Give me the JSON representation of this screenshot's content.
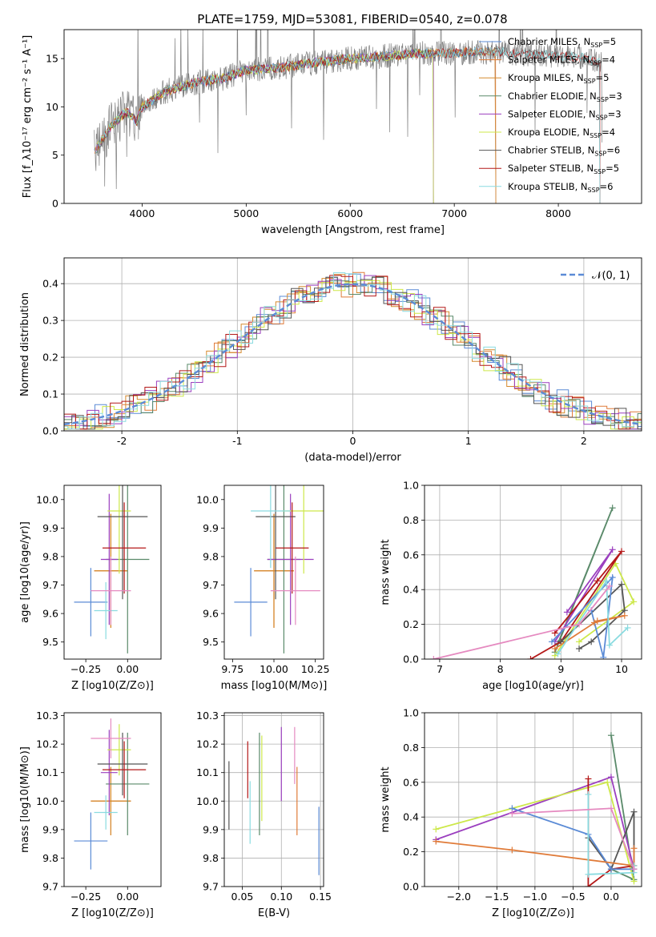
{
  "figure_title": "PLATE=1759, MJD=53081, FIBERID=0540, z=0.078",
  "colors": {
    "Chabrier MILES": "#5b8bd6",
    "Salpeter MILES": "#e07b39",
    "Kroupa MILES": "#d68a2e",
    "Chabrier ELODIE": "#5a8a6a",
    "Salpeter ELODIE": "#9b3fbf",
    "Kroupa ELODIE": "#cde84a",
    "Chabrier STELIB": "#555555",
    "Salpeter STELIB": "#b41818",
    "Kroupa STELIB": "#8adbe0",
    "pink": "#e58ac0",
    "normal_curve": "#5b8bd6"
  },
  "chart_data": [
    {
      "id": "spectrum",
      "type": "line",
      "xlabel": "wavelength [Angstrom, rest frame]",
      "ylabel": "Flux [f_λ10⁻¹⁷ erg cm⁻² s⁻¹ A⁻¹]",
      "xlim": [
        3250,
        8800
      ],
      "ylim": [
        0,
        18
      ],
      "xticks": [
        4000,
        5000,
        6000,
        7000,
        8000
      ],
      "yticks": [
        0,
        5,
        10,
        15
      ],
      "grid": false,
      "legend_position": "right",
      "data_color": "#808080",
      "continuum": [
        [
          3550,
          5.5
        ],
        [
          3700,
          8
        ],
        [
          3850,
          9.5
        ],
        [
          3950,
          8.5
        ],
        [
          4000,
          10
        ],
        [
          4200,
          11.5
        ],
        [
          4500,
          12.5
        ],
        [
          4800,
          13
        ],
        [
          5000,
          13.8
        ],
        [
          5300,
          14
        ],
        [
          5600,
          14.5
        ],
        [
          6000,
          15
        ],
        [
          6300,
          15.2
        ],
        [
          6600,
          15.5
        ],
        [
          7000,
          15.6
        ],
        [
          7400,
          15.7
        ],
        [
          7800,
          15.4
        ],
        [
          8200,
          15.2
        ],
        [
          8400,
          14.5
        ]
      ],
      "series": [
        {
          "name": "Chabrier MILES, N_SSP=5",
          "color_key": "Chabrier MILES",
          "x_end": 7400
        },
        {
          "name": "Salpeter MILES, N_SSP=4",
          "color_key": "Salpeter MILES",
          "x_end": 7400
        },
        {
          "name": "Kroupa MILES, N_SSP=5",
          "color_key": "Kroupa MILES",
          "x_end": 7400
        },
        {
          "name": "Chabrier ELODIE, N_SSP=3",
          "color_key": "Chabrier ELODIE",
          "x_end": 6800
        },
        {
          "name": "Salpeter ELODIE, N_SSP=3",
          "color_key": "Salpeter ELODIE",
          "x_end": 6800
        },
        {
          "name": "Kroupa ELODIE, N_SSP=4",
          "color_key": "Kroupa ELODIE",
          "x_end": 6800
        },
        {
          "name": "Chabrier STELIB, N_SSP=6",
          "color_key": "Chabrier STELIB",
          "x_end": 8400
        },
        {
          "name": "Salpeter STELIB, N_SSP=5",
          "color_key": "Salpeter STELIB",
          "x_end": 8400
        },
        {
          "name": "Kroupa STELIB, N_SSP=6",
          "color_key": "Kroupa STELIB",
          "x_end": 8400
        }
      ]
    },
    {
      "id": "residuals",
      "type": "line",
      "xlabel": "(data-model)/error",
      "ylabel": "Normed distribution",
      "xlim": [
        -2.5,
        2.5
      ],
      "ylim": [
        0,
        0.47
      ],
      "xticks": [
        -2,
        -1,
        0,
        1,
        2
      ],
      "yticks": [
        0.0,
        0.1,
        0.2,
        0.3,
        0.4
      ],
      "grid": true,
      "legend_position": "top-right",
      "curve_label": "𝒩(0, 1)",
      "bin_width": 0.1
    },
    {
      "id": "age_vs_Z",
      "type": "scatter",
      "xlabel": "Z [log10(Z/Z⊙)]",
      "ylabel": "age  [log10(age/yr)]",
      "xlim": [
        -0.38,
        0.2
      ],
      "ylim": [
        9.44,
        10.05
      ],
      "xticks": [
        -0.25,
        0.0
      ],
      "xticklabels": [
        "−0.25",
        "0.00"
      ],
      "yticks": [
        9.5,
        9.6,
        9.7,
        9.8,
        9.9,
        10.0
      ],
      "grid": false,
      "points": [
        {
          "x": -0.22,
          "y": 9.64,
          "xerr": 0.1,
          "yerr": 0.12,
          "color_key": "Chabrier MILES"
        },
        {
          "x": -0.1,
          "y": 9.75,
          "xerr": 0.1,
          "yerr": 0.2,
          "color_key": "Salpeter MILES"
        },
        {
          "x": -0.1,
          "y": 9.75,
          "xerr": 0.1,
          "yerr": 0.2,
          "color_key": "Kroupa MILES"
        },
        {
          "x": 0.0,
          "y": 9.79,
          "xerr": 0.13,
          "yerr": 0.33,
          "color_key": "Chabrier ELODIE"
        },
        {
          "x": -0.11,
          "y": 9.79,
          "xerr": 0.05,
          "yerr": 0.23,
          "color_key": "Salpeter ELODIE"
        },
        {
          "x": -0.05,
          "y": 9.96,
          "xerr": 0.07,
          "yerr": 0.22,
          "color_key": "Kroupa ELODIE"
        },
        {
          "x": -0.03,
          "y": 9.94,
          "xerr": 0.15,
          "yerr": 0.29,
          "color_key": "Chabrier STELIB"
        },
        {
          "x": -0.02,
          "y": 9.83,
          "xerr": 0.13,
          "yerr": 0.16,
          "color_key": "Salpeter STELIB"
        },
        {
          "x": -0.13,
          "y": 9.61,
          "xerr": 0.07,
          "yerr": 0.1,
          "color_key": "Kroupa STELIB"
        },
        {
          "x": -0.1,
          "y": 9.68,
          "xerr": 0.12,
          "yerr": 0.12,
          "color_key": "pink"
        }
      ]
    },
    {
      "id": "age_vs_mass",
      "type": "scatter",
      "xlabel": "mass [log10(M/M⊙)]",
      "ylabel": "",
      "xlim": [
        9.7,
        10.3
      ],
      "ylim": [
        9.44,
        10.05
      ],
      "xticks": [
        9.75,
        10.0,
        10.25
      ],
      "xticklabels": [
        "9.75",
        "10.00",
        "10.25"
      ],
      "yticks": [
        9.5,
        9.6,
        9.7,
        9.8,
        9.9,
        10.0
      ],
      "grid": false,
      "points": [
        {
          "x": 9.86,
          "y": 9.64,
          "xerr": 0.1,
          "yerr": 0.12,
          "color_key": "Chabrier MILES"
        },
        {
          "x": 10.0,
          "y": 9.75,
          "xerr": 0.12,
          "yerr": 0.2,
          "color_key": "Salpeter MILES"
        },
        {
          "x": 10.0,
          "y": 9.75,
          "xerr": 0.12,
          "yerr": 0.2,
          "color_key": "Kroupa MILES"
        },
        {
          "x": 10.06,
          "y": 9.79,
          "xerr": 0.1,
          "yerr": 0.33,
          "color_key": "Chabrier ELODIE"
        },
        {
          "x": 10.1,
          "y": 9.79,
          "xerr": 0.14,
          "yerr": 0.23,
          "color_key": "Salpeter ELODIE"
        },
        {
          "x": 10.18,
          "y": 9.96,
          "xerr": 0.13,
          "yerr": 0.22,
          "color_key": "Kroupa ELODIE"
        },
        {
          "x": 10.01,
          "y": 9.94,
          "xerr": 0.12,
          "yerr": 0.29,
          "color_key": "Chabrier STELIB"
        },
        {
          "x": 10.11,
          "y": 9.83,
          "xerr": 0.1,
          "yerr": 0.16,
          "color_key": "Salpeter STELIB"
        },
        {
          "x": 9.98,
          "y": 9.96,
          "xerr": 0.12,
          "yerr": 0.2,
          "color_key": "Kroupa STELIB"
        },
        {
          "x": 10.13,
          "y": 9.68,
          "xerr": 0.15,
          "yerr": 0.12,
          "color_key": "pink"
        }
      ]
    },
    {
      "id": "massweight_vs_age",
      "type": "line",
      "xlabel": "age  [log10(age/yr)]",
      "ylabel": "mass weight",
      "xlim": [
        6.75,
        10.33
      ],
      "ylim": [
        0,
        1.0
      ],
      "xticks": [
        7,
        8,
        9,
        10
      ],
      "yticks": [
        0.0,
        0.2,
        0.4,
        0.6,
        0.8,
        1.0
      ],
      "grid": true,
      "series": [
        {
          "color_key": "Chabrier ELODIE",
          "points": [
            [
              8.9,
              0.04
            ],
            [
              9.85,
              0.87
            ],
            [
              8.95,
              0.09
            ]
          ]
        },
        {
          "color_key": "Salpeter ELODIE",
          "points": [
            [
              8.9,
              0.1
            ],
            [
              9.85,
              0.63
            ],
            [
              9.1,
              0.27
            ]
          ]
        },
        {
          "color_key": "Kroupa ELODIE",
          "points": [
            [
              8.9,
              0.02
            ],
            [
              9.9,
              0.55
            ],
            [
              10.2,
              0.33
            ],
            [
              9.3,
              0.1
            ]
          ]
        },
        {
          "color_key": "Salpeter STELIB",
          "points": [
            [
              8.5,
              0.0
            ],
            [
              9.0,
              0.1
            ],
            [
              10.0,
              0.62
            ],
            [
              9.6,
              0.45
            ],
            [
              8.9,
              0.15
            ]
          ]
        },
        {
          "color_key": "Chabrier STELIB",
          "points": [
            [
              9.0,
              0.1
            ],
            [
              10.0,
              0.43
            ],
            [
              10.05,
              0.28
            ],
            [
              9.5,
              0.1
            ],
            [
              9.3,
              0.06
            ]
          ]
        },
        {
          "color_key": "Chabrier MILES",
          "points": [
            [
              8.85,
              0.1
            ],
            [
              9.85,
              0.47
            ],
            [
              9.7,
              0.01
            ],
            [
              9.5,
              0.28
            ]
          ]
        },
        {
          "color_key": "Salpeter MILES",
          "points": [
            [
              8.9,
              0.06
            ],
            [
              9.6,
              0.22
            ],
            [
              10.05,
              0.25
            ],
            [
              9.55,
              0.21
            ]
          ]
        },
        {
          "color_key": "Kroupa STELIB",
          "points": [
            [
              8.95,
              0.03
            ],
            [
              9.75,
              0.45
            ],
            [
              9.8,
              0.08
            ],
            [
              10.1,
              0.18
            ]
          ]
        },
        {
          "color_key": "pink",
          "points": [
            [
              6.9,
              0.0
            ],
            [
              9.3,
              0.2
            ],
            [
              9.8,
              0.42
            ]
          ]
        }
      ]
    },
    {
      "id": "mass_vs_Z",
      "type": "scatter",
      "xlabel": "Z [log10(Z/Z⊙)]",
      "ylabel": "mass [log10(M/M⊙)]",
      "xlim": [
        -0.38,
        0.2
      ],
      "ylim": [
        9.7,
        10.31
      ],
      "xticks": [
        -0.25,
        0.0
      ],
      "xticklabels": [
        "−0.25",
        "0.00"
      ],
      "yticks": [
        9.7,
        9.8,
        9.9,
        10.0,
        10.1,
        10.2,
        10.3
      ],
      "grid": false,
      "points": [
        {
          "x": -0.22,
          "y": 9.86,
          "xerr": 0.1,
          "yerr": 0.1,
          "color_key": "Chabrier MILES"
        },
        {
          "x": -0.1,
          "y": 10.0,
          "xerr": 0.12,
          "yerr": 0.12,
          "color_key": "Salpeter MILES"
        },
        {
          "x": -0.1,
          "y": 10.0,
          "xerr": 0.12,
          "yerr": 0.12,
          "color_key": "Kroupa MILES"
        },
        {
          "x": 0.0,
          "y": 10.06,
          "xerr": 0.13,
          "yerr": 0.18,
          "color_key": "Chabrier ELODIE"
        },
        {
          "x": -0.11,
          "y": 10.1,
          "xerr": 0.05,
          "yerr": 0.15,
          "color_key": "Salpeter ELODIE"
        },
        {
          "x": -0.05,
          "y": 10.18,
          "xerr": 0.07,
          "yerr": 0.09,
          "color_key": "Kroupa ELODIE"
        },
        {
          "x": -0.03,
          "y": 10.13,
          "xerr": 0.15,
          "yerr": 0.11,
          "color_key": "Chabrier STELIB"
        },
        {
          "x": -0.02,
          "y": 10.11,
          "xerr": 0.13,
          "yerr": 0.1,
          "color_key": "Salpeter STELIB"
        },
        {
          "x": -0.13,
          "y": 9.96,
          "xerr": 0.07,
          "yerr": 0.06,
          "color_key": "Kroupa STELIB"
        },
        {
          "x": -0.1,
          "y": 10.22,
          "xerr": 0.12,
          "yerr": 0.07,
          "color_key": "pink"
        }
      ]
    },
    {
      "id": "mass_vs_ebv",
      "type": "scatter",
      "xlabel": "E(B-V)",
      "ylabel": "",
      "xlim": [
        0.027,
        0.154
      ],
      "ylim": [
        9.7,
        10.31
      ],
      "xticks": [
        0.05,
        0.1,
        0.15
      ],
      "xticklabels": [
        "0.05",
        "0.10",
        "0.15"
      ],
      "yticks": [
        9.7,
        9.8,
        9.9,
        10.0,
        10.1,
        10.2,
        10.3
      ],
      "grid": true,
      "points": [
        {
          "x": 0.148,
          "y": 9.86,
          "xerr": 0,
          "yerr": 0.12,
          "color_key": "Chabrier MILES"
        },
        {
          "x": 0.12,
          "y": 10.0,
          "xerr": 0,
          "yerr": 0.12,
          "color_key": "Salpeter MILES"
        },
        {
          "x": 0.072,
          "y": 10.06,
          "xerr": 0,
          "yerr": 0.18,
          "color_key": "Chabrier ELODIE"
        },
        {
          "x": 0.1,
          "y": 10.13,
          "xerr": 0,
          "yerr": 0.13,
          "color_key": "Salpeter ELODIE"
        },
        {
          "x": 0.075,
          "y": 10.08,
          "xerr": 0,
          "yerr": 0.15,
          "color_key": "Kroupa ELODIE"
        },
        {
          "x": 0.033,
          "y": 10.02,
          "xerr": 0,
          "yerr": 0.12,
          "color_key": "Chabrier STELIB"
        },
        {
          "x": 0.057,
          "y": 10.11,
          "xerr": 0,
          "yerr": 0.1,
          "color_key": "Salpeter STELIB"
        },
        {
          "x": 0.06,
          "y": 9.96,
          "xerr": 0,
          "yerr": 0.11,
          "color_key": "Kroupa STELIB"
        },
        {
          "x": 0.117,
          "y": 10.16,
          "xerr": 0,
          "yerr": 0.1,
          "color_key": "pink"
        }
      ]
    },
    {
      "id": "massweight_vs_Z",
      "type": "line",
      "xlabel": "Z [log10(Z/Z⊙)]",
      "ylabel": "mass weight",
      "xlim": [
        -2.45,
        0.4
      ],
      "ylim": [
        0,
        1.0
      ],
      "xticks": [
        -2.0,
        -1.5,
        -1.0,
        -0.5,
        0.0
      ],
      "xticklabels": [
        "−2.0",
        "−1.5",
        "−1.0",
        "−0.5",
        "0.0"
      ],
      "yticks": [
        0.0,
        0.2,
        0.4,
        0.6,
        0.8,
        1.0
      ],
      "grid": true,
      "series": [
        {
          "color_key": "Chabrier ELODIE",
          "points": [
            [
              0.0,
              0.87
            ],
            [
              0.3,
              0.04
            ],
            [
              0.0,
              0.1
            ]
          ]
        },
        {
          "color_key": "Salpeter ELODIE",
          "points": [
            [
              -2.3,
              0.27
            ],
            [
              0.0,
              0.63
            ],
            [
              0.3,
              0.1
            ]
          ]
        },
        {
          "color_key": "Kroupa ELODIE",
          "points": [
            [
              -2.3,
              0.33
            ],
            [
              -0.05,
              0.6
            ],
            [
              0.3,
              0.03
            ]
          ]
        },
        {
          "color_key": "Salpeter STELIB",
          "points": [
            [
              -0.3,
              0.62
            ],
            [
              -0.3,
              0.0
            ],
            [
              0.0,
              0.1
            ],
            [
              0.3,
              0.12
            ]
          ]
        },
        {
          "color_key": "Chabrier STELIB",
          "points": [
            [
              -0.3,
              0.28
            ],
            [
              0.0,
              0.1
            ],
            [
              0.3,
              0.43
            ],
            [
              0.3,
              0.1
            ]
          ]
        },
        {
          "color_key": "Chabrier MILES",
          "points": [
            [
              -1.3,
              0.45
            ],
            [
              -0.3,
              0.3
            ],
            [
              0.0,
              0.1
            ],
            [
              0.3,
              0.1
            ]
          ]
        },
        {
          "color_key": "Salpeter MILES",
          "points": [
            [
              -2.3,
              0.26
            ],
            [
              -1.3,
              0.21
            ],
            [
              0.3,
              0.12
            ],
            [
              0.3,
              0.22
            ]
          ]
        },
        {
          "color_key": "Kroupa STELIB",
          "points": [
            [
              -0.3,
              0.53
            ],
            [
              -0.3,
              0.07
            ],
            [
              0.3,
              0.08
            ],
            [
              0.3,
              0.12
            ]
          ]
        },
        {
          "color_key": "pink",
          "points": [
            [
              -1.3,
              0.42
            ],
            [
              0.0,
              0.45
            ],
            [
              0.3,
              0.1
            ]
          ]
        }
      ]
    }
  ]
}
